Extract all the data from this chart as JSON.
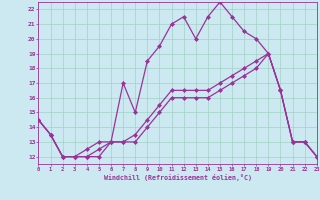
{
  "xlabel": "Windchill (Refroidissement éolien,°C)",
  "bg_color": "#cce8f0",
  "line_color": "#993399",
  "grid_color": "#99ccbb",
  "xlim": [
    0,
    23
  ],
  "ylim": [
    11.5,
    22.5
  ],
  "xticks": [
    0,
    1,
    2,
    3,
    4,
    5,
    6,
    7,
    8,
    9,
    10,
    11,
    12,
    13,
    14,
    15,
    16,
    17,
    18,
    19,
    20,
    21,
    22,
    23
  ],
  "yticks": [
    12,
    13,
    14,
    15,
    16,
    17,
    18,
    19,
    20,
    21,
    22
  ],
  "series1_x": [
    0,
    1,
    2,
    3,
    4,
    5,
    6,
    7,
    8,
    9,
    10,
    11,
    12,
    13,
    14,
    15,
    16,
    17,
    18,
    19,
    20,
    21,
    22,
    23
  ],
  "series1_y": [
    14.5,
    13.5,
    12.0,
    12.0,
    12.0,
    12.0,
    13.0,
    13.0,
    13.0,
    14.0,
    15.0,
    16.0,
    16.0,
    16.0,
    16.0,
    16.5,
    17.0,
    17.5,
    18.0,
    19.0,
    16.5,
    13.0,
    13.0,
    12.0
  ],
  "series2_x": [
    0,
    1,
    2,
    3,
    4,
    5,
    6,
    7,
    8,
    9,
    10,
    11,
    12,
    13,
    14,
    15,
    16,
    17,
    18,
    19,
    20,
    21,
    22,
    23
  ],
  "series2_y": [
    14.5,
    13.5,
    12.0,
    12.0,
    12.5,
    13.0,
    13.0,
    17.0,
    15.0,
    18.5,
    19.5,
    21.0,
    21.5,
    20.0,
    21.5,
    22.5,
    21.5,
    20.5,
    20.0,
    19.0,
    16.5,
    13.0,
    13.0,
    12.0
  ],
  "series3_x": [
    0,
    1,
    2,
    3,
    4,
    5,
    6,
    7,
    8,
    9,
    10,
    11,
    12,
    13,
    14,
    15,
    16,
    17,
    18,
    19,
    20,
    21,
    22,
    23
  ],
  "series3_y": [
    14.5,
    13.5,
    12.0,
    12.0,
    12.0,
    12.5,
    13.0,
    13.0,
    13.5,
    14.5,
    15.5,
    16.5,
    16.5,
    16.5,
    16.5,
    17.0,
    17.5,
    18.0,
    18.5,
    19.0,
    16.5,
    13.0,
    13.0,
    12.0
  ],
  "marker": "D",
  "markersize": 2.0,
  "linewidth": 0.9
}
